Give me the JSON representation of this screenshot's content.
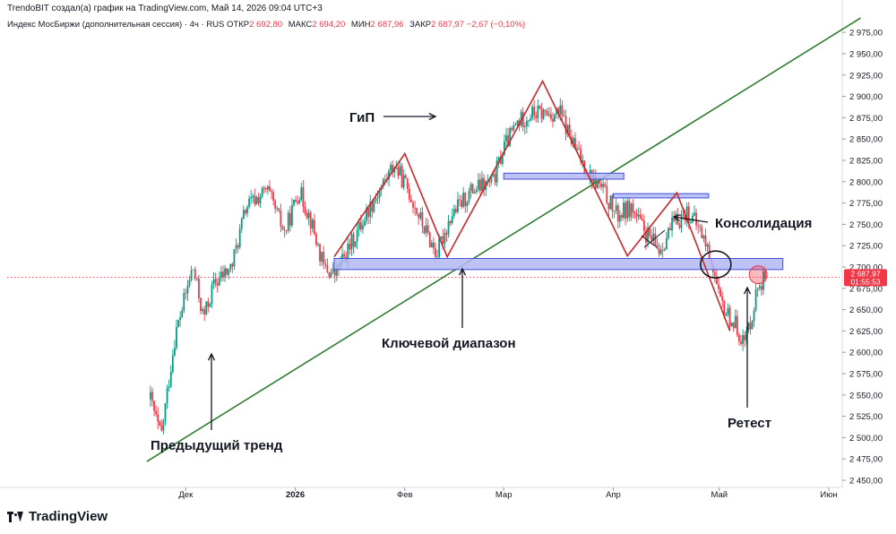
{
  "header": {
    "credit": "TrendoBIT создал(а) график на TradingView.com, Май 14, 2026 09:04 UTC+3"
  },
  "symbol": {
    "name": "Индекс МосБиржи (дополнительная сессия) · 4ч · RUS",
    "open_label": "ОТКР",
    "open_value": "2 692,80",
    "high_label": "МАКС",
    "high_value": "2 694,20",
    "low_label": "МИН",
    "low_value": "2 687,96",
    "close_label": "ЗАКР",
    "close_value": "2 687,97 −2,67 (−0,10%)"
  },
  "price_tag": {
    "price": "2 687,97",
    "countdown": "01:55:53"
  },
  "footer": {
    "brand": "TradingView"
  },
  "colors": {
    "up": "#089981",
    "down": "#f23645",
    "trend": "#2e7d32",
    "pattern": "#c62828",
    "zone_fill": "#b3b9f5",
    "zone_stroke": "#3f4fd6"
  },
  "chart_data": {
    "type": "candlestick",
    "y_axis": {
      "min": 2450,
      "max": 2990,
      "ticks": [
        2450,
        2475,
        2500,
        2525,
        2550,
        2575,
        2600,
        2625,
        2650,
        2675,
        2700,
        2725,
        2750,
        2775,
        2800,
        2825,
        2850,
        2875,
        2900,
        2925,
        2950,
        2975
      ],
      "tick_labels": [
        "2 450,00",
        "2 475,00",
        "2 500,00",
        "2 525,00",
        "2 550,00",
        "2 575,00",
        "2 600,00",
        "2 625,00",
        "2 650,00",
        "2 675,00",
        "2 700,00",
        "2 725,00",
        "2 750,00",
        "2 775,00",
        "2 800,00",
        "2 825,00",
        "2 850,00",
        "2 875,00",
        "2 900,00",
        "2 925,00",
        "2 950,00",
        "2 975,00"
      ]
    },
    "x_axis": {
      "labels": [
        "Дек",
        "2026",
        "Фев",
        "Мар",
        "Апр",
        "Май",
        "Июн"
      ]
    },
    "price_path": [
      [
        "2025-11-21",
        2545
      ],
      [
        "2025-11-24",
        2500
      ],
      [
        "2025-11-28",
        2620
      ],
      [
        "2025-12-03",
        2700
      ],
      [
        "2025-12-06",
        2640
      ],
      [
        "2025-12-09",
        2680
      ],
      [
        "2025-12-14",
        2700
      ],
      [
        "2025-12-18",
        2770
      ],
      [
        "2025-12-24",
        2790
      ],
      [
        "2025-12-29",
        2740
      ],
      [
        "2026-01-02",
        2790
      ],
      [
        "2026-01-05",
        2760
      ],
      [
        "2026-01-09",
        2700
      ],
      [
        "2026-01-12",
        2690
      ],
      [
        "2026-01-16",
        2720
      ],
      [
        "2026-01-22",
        2770
      ],
      [
        "2026-01-29",
        2820
      ],
      [
        "2026-02-02",
        2790
      ],
      [
        "2026-02-06",
        2750
      ],
      [
        "2026-02-10",
        2715
      ],
      [
        "2026-02-14",
        2760
      ],
      [
        "2026-02-20",
        2790
      ],
      [
        "2026-02-26",
        2800
      ],
      [
        "2026-03-01",
        2840
      ],
      [
        "2026-03-05",
        2870
      ],
      [
        "2026-03-09",
        2880
      ],
      [
        "2026-03-13",
        2880
      ],
      [
        "2026-03-17",
        2880
      ],
      [
        "2026-03-21",
        2840
      ],
      [
        "2026-03-25",
        2810
      ],
      [
        "2026-03-29",
        2790
      ],
      [
        "2026-04-02",
        2760
      ],
      [
        "2026-04-06",
        2770
      ],
      [
        "2026-04-10",
        2740
      ],
      [
        "2026-04-14",
        2720
      ],
      [
        "2026-04-18",
        2750
      ],
      [
        "2026-04-22",
        2765
      ],
      [
        "2026-04-26",
        2740
      ],
      [
        "2026-04-29",
        2705
      ],
      [
        "2026-05-01",
        2660
      ],
      [
        "2026-05-04",
        2640
      ],
      [
        "2026-05-06",
        2630
      ],
      [
        "2026-05-08",
        2610
      ],
      [
        "2026-05-10",
        2640
      ],
      [
        "2026-05-12",
        2680
      ],
      [
        "2026-05-14",
        2688
      ]
    ],
    "annotations": {
      "trendline": {
        "label": "Предыдущий тренд",
        "from": [
          "2025-11-20",
          2472
        ],
        "to": [
          "2026-06-10",
          2992
        ]
      },
      "key_zone": {
        "label": "Ключевой диапазон",
        "from_date": "2026-01-12",
        "to_date": "2026-05-19",
        "low": 2697,
        "high": 2710
      },
      "upper_zone_1": {
        "from_date": "2026-03-01",
        "to_date": "2026-04-04",
        "low": 2803,
        "high": 2810
      },
      "upper_zone_2": {
        "from_date": "2026-04-01",
        "to_date": "2026-04-28",
        "low": 2781,
        "high": 2786
      },
      "pattern_zigzag": [
        [
          "2026-01-12",
          2712
        ],
        [
          "2026-02-01",
          2833
        ],
        [
          "2026-02-13",
          2712
        ],
        [
          "2026-03-12",
          2918
        ],
        [
          "2026-04-05",
          2713
        ],
        [
          "2026-04-19",
          2787
        ],
        [
          "2026-05-04",
          2625
        ]
      ],
      "hs_label": "ГиП",
      "consolidation_label": "Консолидация",
      "retest_label": "Ретест",
      "consolidation_circle": [
        "2026-04-30",
        2703
      ],
      "retest_circle": [
        "2026-05-12",
        2691
      ]
    }
  }
}
